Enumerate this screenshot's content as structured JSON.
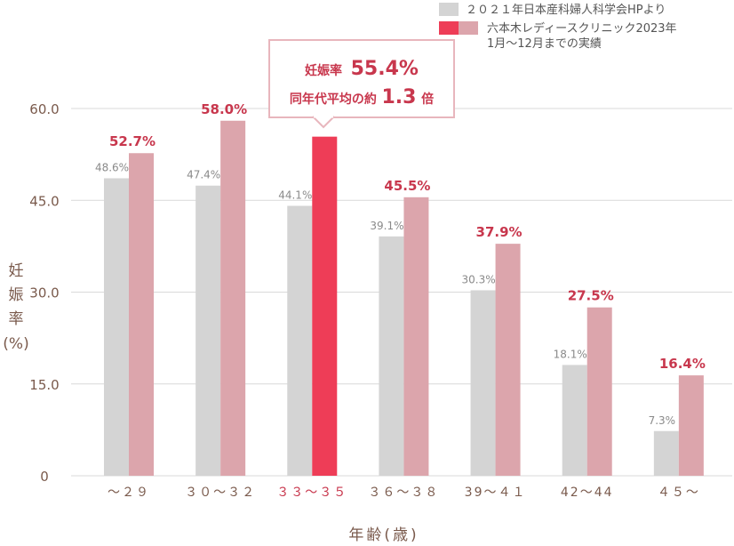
{
  "chart_data": {
    "type": "bar",
    "categories": [
      "～２９",
      "３０～３２",
      "３３～３５",
      "３６～３８",
      "39～４１",
      "42～44",
      "４５～"
    ],
    "highlight_category_index": 2,
    "series": [
      {
        "name": "２０２１年日本産科婦人科学会HPより",
        "values": [
          48.6,
          47.4,
          44.1,
          39.1,
          30.3,
          18.1,
          7.3
        ],
        "labels": [
          "48.6%",
          "47.4%",
          "44.1%",
          "39.1%",
          "30.3%",
          "18.1%",
          "7.3%"
        ],
        "color": "#d4d4d4"
      },
      {
        "name_lines": [
          "六本木レディースクリニック2023年",
          "1月～12月までの実績"
        ],
        "values": [
          52.7,
          58.0,
          55.4,
          45.5,
          37.9,
          27.5,
          16.4
        ],
        "labels": [
          "52.7%",
          "58.0%",
          "",
          "45.5%",
          "37.9%",
          "27.5%",
          "16.4%"
        ],
        "color": "#dca5ac",
        "highlight_color": "#ee3d57"
      }
    ],
    "yticks": [
      "0",
      "15.0",
      "30.0",
      "45.0",
      "60.0"
    ],
    "ytick_values": [
      0,
      15,
      30,
      45,
      60
    ],
    "ylim": [
      0,
      60
    ],
    "ylabel": [
      "妊",
      "娠",
      "率",
      "(%)"
    ],
    "xlabel": "年齢(歳)",
    "grid": true,
    "legend_position": "top-right",
    "callout": {
      "line1_prefix": "妊娠率",
      "line1_value": "55.4%",
      "line2_prefix": "同年代平均の約",
      "line2_value": "1.3",
      "line2_suffix": "倍"
    }
  }
}
